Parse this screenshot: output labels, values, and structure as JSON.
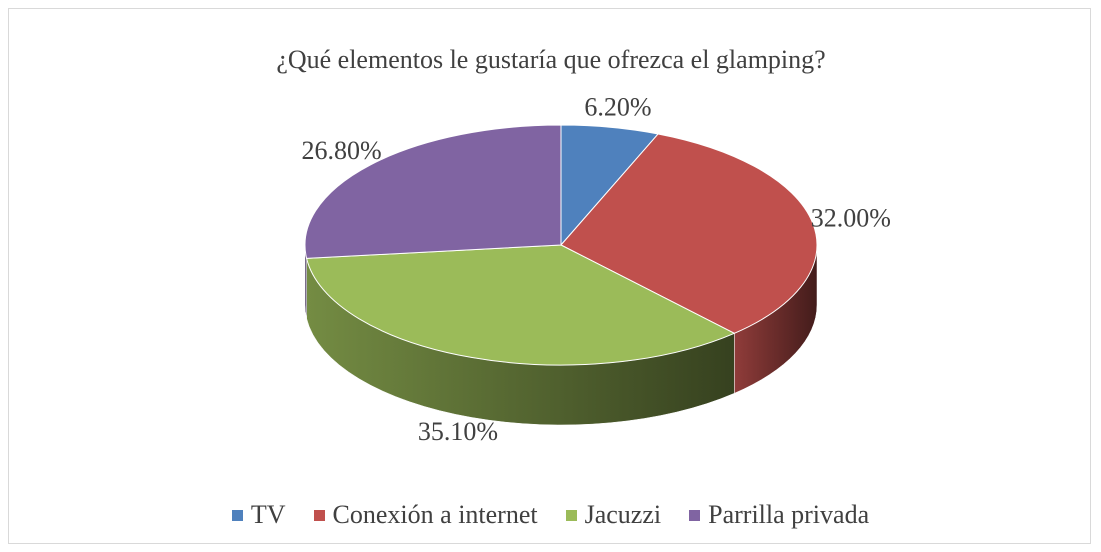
{
  "chart_data": {
    "type": "pie3d",
    "title": "¿Qué elementos le gustaría que ofrezca el glamping?",
    "categories": [
      "TV",
      "Conexión a internet",
      "Jacuzzi",
      "Parrilla privada"
    ],
    "values": [
      6.2,
      32.0,
      35.1,
      26.8
    ],
    "value_labels": [
      "6.20%",
      "32.00%",
      "35.10%",
      "26.80%"
    ],
    "colors": [
      "#4f81bd",
      "#c0504d",
      "#9bbb59",
      "#8064a2"
    ],
    "legend": "bottom"
  }
}
